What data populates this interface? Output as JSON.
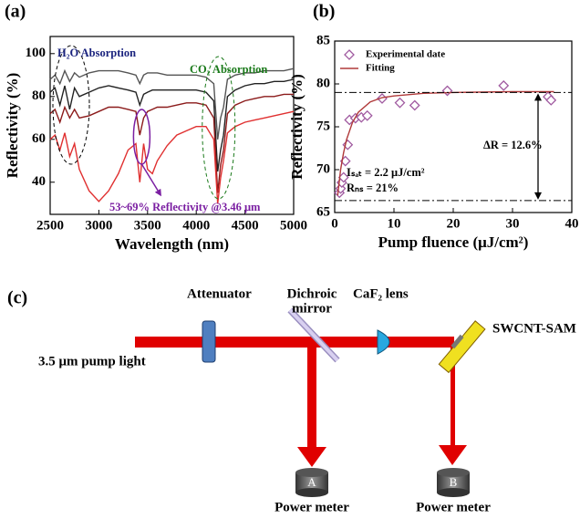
{
  "chart_data": [
    {
      "type": "line",
      "panel_label": "(a)",
      "x_label": "Wavelength (nm)",
      "y_label": "Reflectivity (%)",
      "x": [
        2500,
        2550,
        2600,
        2650,
        2700,
        2750,
        2800,
        2900,
        3000,
        3100,
        3200,
        3300,
        3380,
        3420,
        3460,
        3500,
        3550,
        3600,
        3700,
        3800,
        3900,
        4000,
        4100,
        4180,
        4220,
        4250,
        4280,
        4320,
        4400,
        4500,
        4600,
        4700,
        4800,
        4900,
        5000
      ],
      "series": [
        {
          "color": "#555555",
          "values": [
            88,
            90,
            86,
            92,
            87,
            91,
            89,
            91,
            92,
            92,
            92,
            91,
            90,
            86,
            90,
            91,
            91,
            91,
            90,
            90,
            90,
            90,
            89,
            86,
            60,
            70,
            75,
            88,
            90,
            91,
            91,
            92,
            92,
            92,
            93
          ]
        },
        {
          "color": "#222222",
          "values": [
            82,
            84,
            76,
            85,
            74,
            84,
            80,
            82,
            84,
            85,
            84,
            83,
            82,
            76,
            81,
            82,
            83,
            83,
            83,
            83,
            83,
            83,
            82,
            78,
            45,
            55,
            62,
            80,
            83,
            85,
            86,
            86,
            87,
            87,
            88
          ]
        },
        {
          "color": "#8b1a1a",
          "values": [
            72,
            74,
            68,
            75,
            70,
            74,
            70,
            71,
            73,
            75,
            75,
            74,
            73,
            62,
            70,
            73,
            74,
            75,
            75,
            76,
            77,
            77,
            76,
            70,
            35,
            48,
            55,
            72,
            76,
            78,
            79,
            80,
            80,
            81,
            81
          ]
        },
        {
          "color": "#e03030",
          "values": [
            60,
            62,
            55,
            63,
            52,
            58,
            46,
            36,
            31,
            36,
            44,
            55,
            58,
            40,
            58,
            46,
            44,
            50,
            57,
            62,
            64,
            66,
            66,
            60,
            30,
            42,
            50,
            63,
            66,
            68,
            69,
            70,
            71,
            72,
            73
          ]
        }
      ],
      "xlim": [
        2500,
        5000
      ],
      "xticks": [
        2500,
        3000,
        3500,
        4000,
        4500,
        5000
      ],
      "ylim": [
        25,
        108
      ],
      "yticks": [
        40,
        60,
        80,
        100
      ],
      "annotations": [
        {
          "text": "H₂O Absorption",
          "color": "#1a237e"
        },
        {
          "text": "CO₂ Absorption",
          "color": "#1b7a1b"
        },
        {
          "text": "53~69% Reflectivity @3.46 μm",
          "color": "#7b1fa2"
        }
      ]
    },
    {
      "type": "scatter",
      "panel_label": "(b)",
      "x_label": "Pump fluence (μJ/cm²)",
      "y_label": "Reflectivity (%)",
      "series": [
        {
          "name": "Experimental date",
          "color": "#a05aa0",
          "mode": "markers",
          "x": [
            0.8,
            1.0,
            1.2,
            1.5,
            1.8,
            2.2,
            2.5,
            3.5,
            4.5,
            5.5,
            8,
            11,
            13.5,
            19,
            28.5,
            36,
            36.5
          ],
          "values": [
            67.3,
            67.8,
            68.5,
            69.1,
            71.0,
            72.9,
            75.8,
            76.0,
            76.1,
            76.3,
            78.3,
            77.8,
            77.5,
            79.2,
            79.8,
            78.5,
            78.1
          ]
        },
        {
          "name": "Fitting",
          "color": "#b03a3a",
          "mode": "line",
          "x": [
            0.5,
            1,
            1.5,
            2,
            3,
            4,
            6,
            8,
            10,
            15,
            20,
            30,
            37
          ],
          "values": [
            67.0,
            70.0,
            72.0,
            73.5,
            75.5,
            76.7,
            77.9,
            78.4,
            78.6,
            78.9,
            79.0,
            79.1,
            79.1
          ]
        }
      ],
      "reference_lines": [
        79.0,
        66.4
      ],
      "xlim": [
        0,
        40
      ],
      "xticks": [
        0,
        10,
        20,
        30,
        40
      ],
      "ylim": [
        65,
        85
      ],
      "yticks": [
        65,
        70,
        75,
        80,
        85
      ],
      "annotations": [
        {
          "text": "ΔR = 12.6%"
        },
        {
          "text": "Iₛₐₜ = 2.2 μJ/cm²"
        },
        {
          "text": "Rₙₛ = 21%"
        }
      ]
    }
  ],
  "diagram": {
    "panel_label": "(c)",
    "attenuator": "Attenuator",
    "dichroic_mirror": [
      "Dichroic",
      "mirror"
    ],
    "lens": "CaF₂ lens",
    "sam": "SWCNT-SAM",
    "source": "3.5 μm pump light",
    "meters": [
      {
        "id": "A",
        "label": "Power meter"
      },
      {
        "id": "B",
        "label": "Power meter"
      }
    ]
  }
}
